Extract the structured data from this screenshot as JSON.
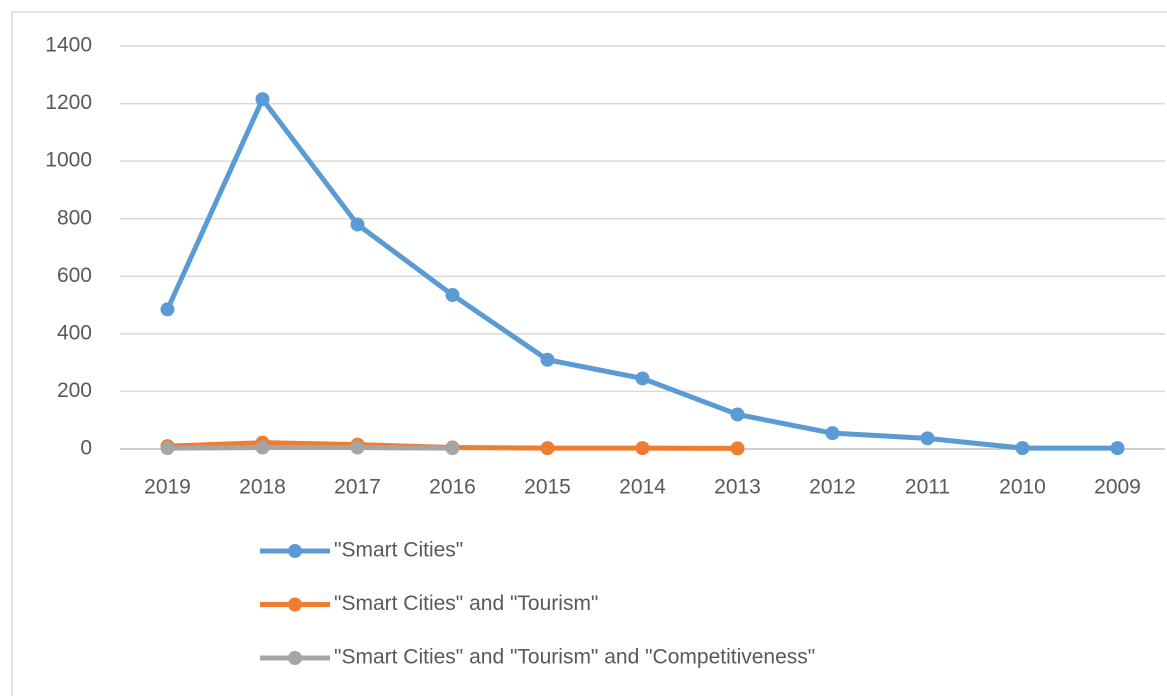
{
  "chart_data": {
    "type": "line",
    "categories": [
      "2019",
      "2018",
      "2017",
      "2016",
      "2015",
      "2014",
      "2013",
      "2012",
      "2011",
      "2010",
      "2009"
    ],
    "series": [
      {
        "name": "\"Smart Cities\"",
        "color": "#5b9bd5",
        "values": [
          485,
          1215,
          780,
          535,
          310,
          245,
          120,
          55,
          37,
          3,
          3
        ]
      },
      {
        "name": "\"Smart Cities\" and \"Tourism\"",
        "color": "#ed7d31",
        "values": [
          10,
          22,
          15,
          5,
          3,
          3,
          2,
          null,
          null,
          null,
          null
        ]
      },
      {
        "name": "\"Smart Cities\" and \"Tourism\" and \"Competitiveness\"",
        "color": "#a5a5a5",
        "values": [
          3,
          5,
          5,
          3,
          null,
          null,
          null,
          null,
          null,
          null,
          null
        ]
      }
    ],
    "ylim": [
      0,
      1400
    ],
    "yticks": [
      0,
      200,
      400,
      600,
      800,
      1000,
      1200,
      1400
    ],
    "grid": true,
    "legend": "bottom"
  }
}
